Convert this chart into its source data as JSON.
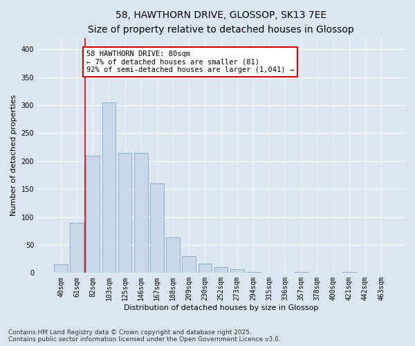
{
  "title1": "58, HAWTHORN DRIVE, GLOSSOP, SK13 7EE",
  "title2": "Size of property relative to detached houses in Glossop",
  "xlabel": "Distribution of detached houses by size in Glossop",
  "ylabel": "Number of detached properties",
  "bar_color": "#c8d8e8",
  "bar_edge_color": "#7aaac8",
  "background_color": "#dce6f0",
  "fig_background_color": "#dce6f0",
  "bins": [
    "40sqm",
    "61sqm",
    "82sqm",
    "103sqm",
    "125sqm",
    "146sqm",
    "167sqm",
    "188sqm",
    "209sqm",
    "230sqm",
    "252sqm",
    "273sqm",
    "294sqm",
    "315sqm",
    "336sqm",
    "357sqm",
    "378sqm",
    "400sqm",
    "421sqm",
    "442sqm",
    "463sqm"
  ],
  "values": [
    15,
    90,
    210,
    305,
    215,
    215,
    160,
    63,
    30,
    17,
    10,
    6,
    2,
    0,
    0,
    2,
    0,
    1,
    2,
    1,
    1
  ],
  "ylim": [
    0,
    420
  ],
  "yticks": [
    0,
    50,
    100,
    150,
    200,
    250,
    300,
    350,
    400
  ],
  "vline_x": 1.5,
  "vline_color": "#cc0000",
  "annotation_title": "58 HAWTHORN DRIVE: 80sqm",
  "annotation_line1": "← 7% of detached houses are smaller (81)",
  "annotation_line2": "92% of semi-detached houses are larger (1,041) →",
  "annotation_box_color": "#cc0000",
  "footer1": "Contains HM Land Registry data © Crown copyright and database right 2025.",
  "footer2": "Contains public sector information licensed under the Open Government Licence v3.0.",
  "title_fontsize": 10,
  "subtitle_fontsize": 9,
  "label_fontsize": 8,
  "tick_fontsize": 7,
  "footer_fontsize": 6.5,
  "ann_fontsize": 7.5
}
